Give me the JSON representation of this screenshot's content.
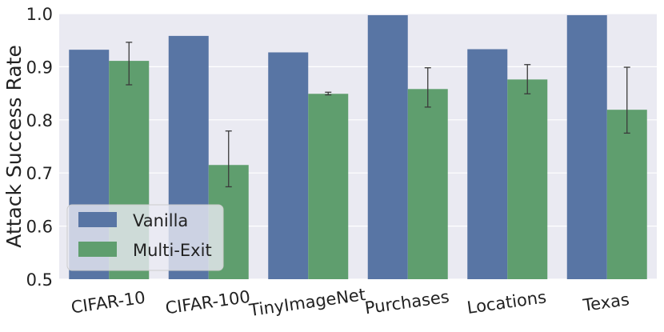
{
  "chart_data": {
    "type": "bar",
    "title": "",
    "xlabel": "",
    "ylabel": "Attack Success Rate",
    "ylim": [
      0.5,
      1.0
    ],
    "yticks": [
      "0.5",
      "0.6",
      "0.7",
      "0.8",
      "0.9",
      "1.0"
    ],
    "categories": [
      "CIFAR-10",
      "CIFAR-100",
      "TinyImageNet",
      "Purchases",
      "Locations",
      "Texas"
    ],
    "series": [
      {
        "name": "Vanilla",
        "color": "#5875a4",
        "values": [
          0.932,
          0.958,
          0.927,
          0.997,
          0.933,
          0.997
        ],
        "error_low": [
          null,
          null,
          null,
          null,
          null,
          null
        ],
        "error_high": [
          null,
          null,
          null,
          null,
          null,
          null
        ]
      },
      {
        "name": "Multi-Exit",
        "color": "#5f9e6e",
        "values": [
          0.911,
          0.715,
          0.849,
          0.858,
          0.876,
          0.819
        ],
        "error_low": [
          0.866,
          0.674,
          0.847,
          0.824,
          0.849,
          0.775
        ],
        "error_high": [
          0.946,
          0.779,
          0.852,
          0.898,
          0.904,
          0.899
        ]
      }
    ],
    "grid": true,
    "legend_position": "bottom-left",
    "background_color": "#eaeaf2"
  }
}
